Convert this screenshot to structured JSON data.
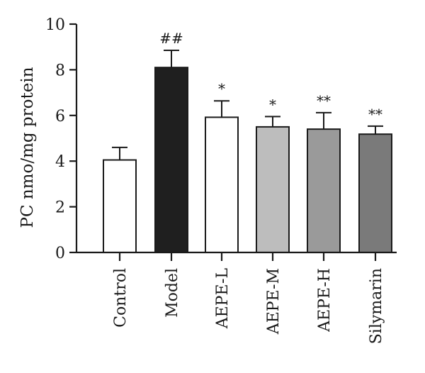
{
  "chart_data": {
    "type": "bar",
    "title": "",
    "xlabel": "",
    "ylabel": "PC nmo/mg protein",
    "ylim": [
      0,
      10
    ],
    "yticks": [
      "0",
      "2",
      "4",
      "6",
      "8",
      "10"
    ],
    "grid": false,
    "categories": [
      "Control",
      "Model",
      "AEPE-L",
      "AEPE-M",
      "AEPE-H",
      "Silymarin"
    ],
    "values": [
      4.05,
      8.1,
      5.92,
      5.5,
      5.4,
      5.18
    ],
    "errors": [
      0.55,
      0.75,
      0.72,
      0.45,
      0.72,
      0.35
    ],
    "annotations": [
      "",
      "##",
      "*",
      "*",
      "**",
      "**"
    ],
    "colors": [
      "#ffffff",
      "#1f1f1f",
      "#ffffff",
      "#bdbdbd",
      "#9a9a9a",
      "#7a7a7a"
    ]
  }
}
